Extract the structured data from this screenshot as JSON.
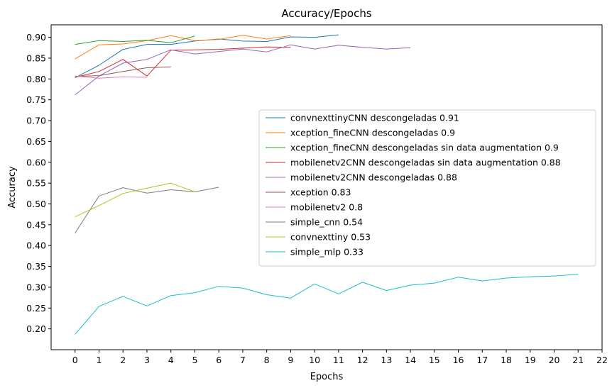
{
  "chart_data": {
    "type": "line",
    "title": "Accuracy/Epochs",
    "xlabel": "Epochs",
    "ylabel": "Accuracy",
    "xlim": [
      -1,
      22
    ],
    "ylim": [
      0.15,
      0.93
    ],
    "xticks": [
      0,
      1,
      2,
      3,
      4,
      5,
      6,
      7,
      8,
      9,
      10,
      11,
      12,
      13,
      14,
      15,
      16,
      17,
      18,
      19,
      20,
      21,
      22
    ],
    "yticks": [
      0.2,
      0.25,
      0.3,
      0.35,
      0.4,
      0.45,
      0.5,
      0.55,
      0.6,
      0.65,
      0.7,
      0.75,
      0.8,
      0.85,
      0.9
    ],
    "grid": false,
    "legend_position": "center-right",
    "series": [
      {
        "name": "convnexttinyCNN descongeladas 0.91",
        "color": "#1f77b4",
        "values": [
          0.803,
          0.833,
          0.871,
          0.883,
          0.883,
          0.891,
          0.896,
          0.891,
          0.89,
          0.901,
          0.9,
          0.906
        ]
      },
      {
        "name": "xception_fineCNN descongeladas 0.9",
        "color": "#ff7f0e",
        "values": [
          0.848,
          0.882,
          0.884,
          0.892,
          0.904,
          0.892,
          0.895,
          0.905,
          0.896,
          0.904
        ]
      },
      {
        "name": "xception_fineCNN descongeladas sin data augmentation 0.9",
        "color": "#2ca02c",
        "values": [
          0.883,
          0.892,
          0.89,
          0.893,
          0.887,
          0.903
        ]
      },
      {
        "name": "mobilenetv2CNN descongeladas sin data augmentation 0.88",
        "color": "#d62728",
        "values": [
          0.804,
          0.818,
          0.847,
          0.807,
          0.869,
          0.87,
          0.871,
          0.874,
          0.877,
          0.876
        ]
      },
      {
        "name": "mobilenetv2CNN descongeladas 0.88",
        "color": "#9467bd",
        "values": [
          0.762,
          0.807,
          0.838,
          0.847,
          0.87,
          0.86,
          0.866,
          0.872,
          0.865,
          0.882,
          0.872,
          0.881,
          0.876,
          0.872,
          0.875
        ]
      },
      {
        "name": "xception 0.83",
        "color": "#8c564b",
        "values": [
          0.806,
          0.808,
          0.818,
          0.827,
          0.829
        ]
      },
      {
        "name": "mobilenetv2 0.8",
        "color": "#e377c2",
        "values": [
          0.807,
          0.802,
          0.805,
          0.804
        ]
      },
      {
        "name": "simple_cnn 0.54",
        "color": "#7f7f7f",
        "values": [
          0.43,
          0.519,
          0.539,
          0.526,
          0.534,
          0.529,
          0.54
        ]
      },
      {
        "name": "convnexttiny 0.53",
        "color": "#bcbd22",
        "values": [
          0.469,
          0.496,
          0.525,
          0.538,
          0.55,
          0.529
        ]
      },
      {
        "name": "simple_mlp 0.33",
        "color": "#17becf",
        "values": [
          0.187,
          0.254,
          0.278,
          0.255,
          0.28,
          0.287,
          0.302,
          0.298,
          0.282,
          0.274,
          0.308,
          0.284,
          0.312,
          0.292,
          0.305,
          0.31,
          0.324,
          0.315,
          0.322,
          0.325,
          0.327,
          0.331
        ]
      }
    ]
  }
}
